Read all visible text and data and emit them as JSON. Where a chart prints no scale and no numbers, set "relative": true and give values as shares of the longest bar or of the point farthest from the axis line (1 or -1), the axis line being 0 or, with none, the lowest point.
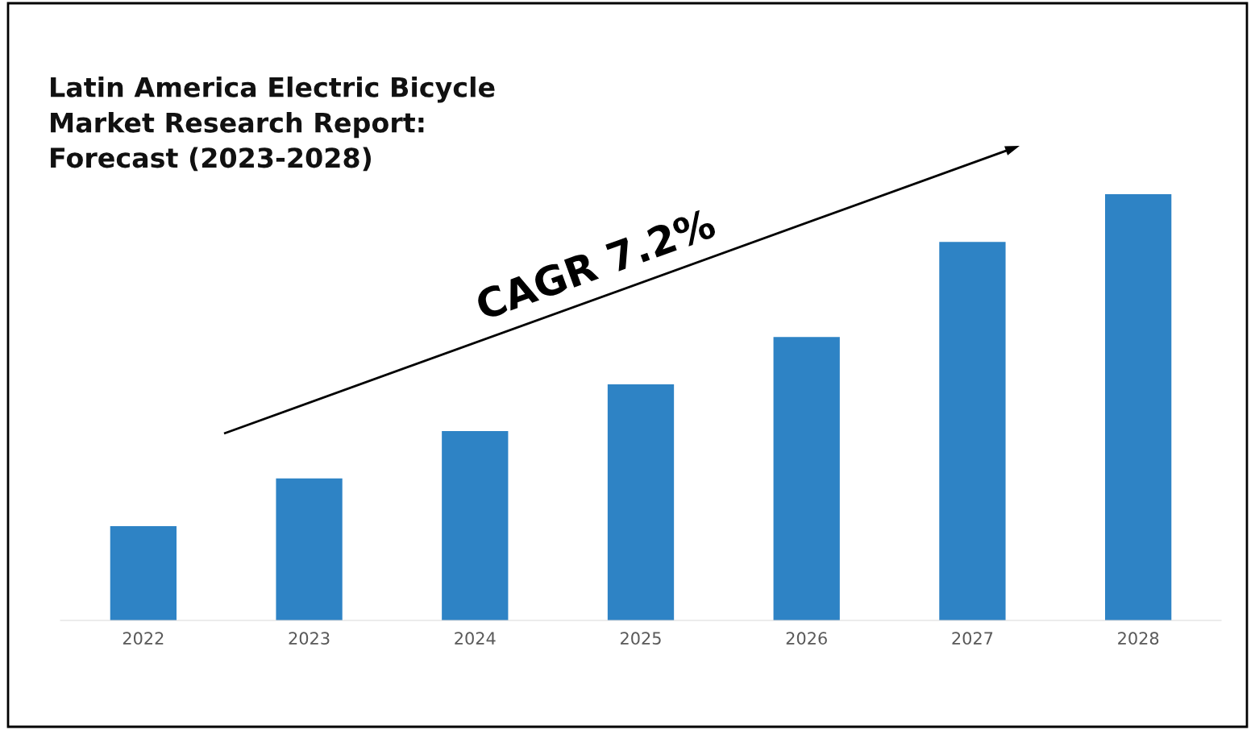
{
  "chart_data": {
    "type": "bar",
    "title": "Latin America Electric Bicycle\nMarket Research Report:\nForecast (2023-2028)",
    "categories": [
      "2022",
      "2023",
      "2024",
      "2025",
      "2026",
      "2027",
      "2028"
    ],
    "values": [
      0.221,
      0.333,
      0.444,
      0.554,
      0.665,
      0.888,
      1
    ],
    "color": "#2e83c5",
    "relative": true,
    "grid": false,
    "legend": false,
    "annotations": [
      "CAGR 7.2%"
    ]
  }
}
